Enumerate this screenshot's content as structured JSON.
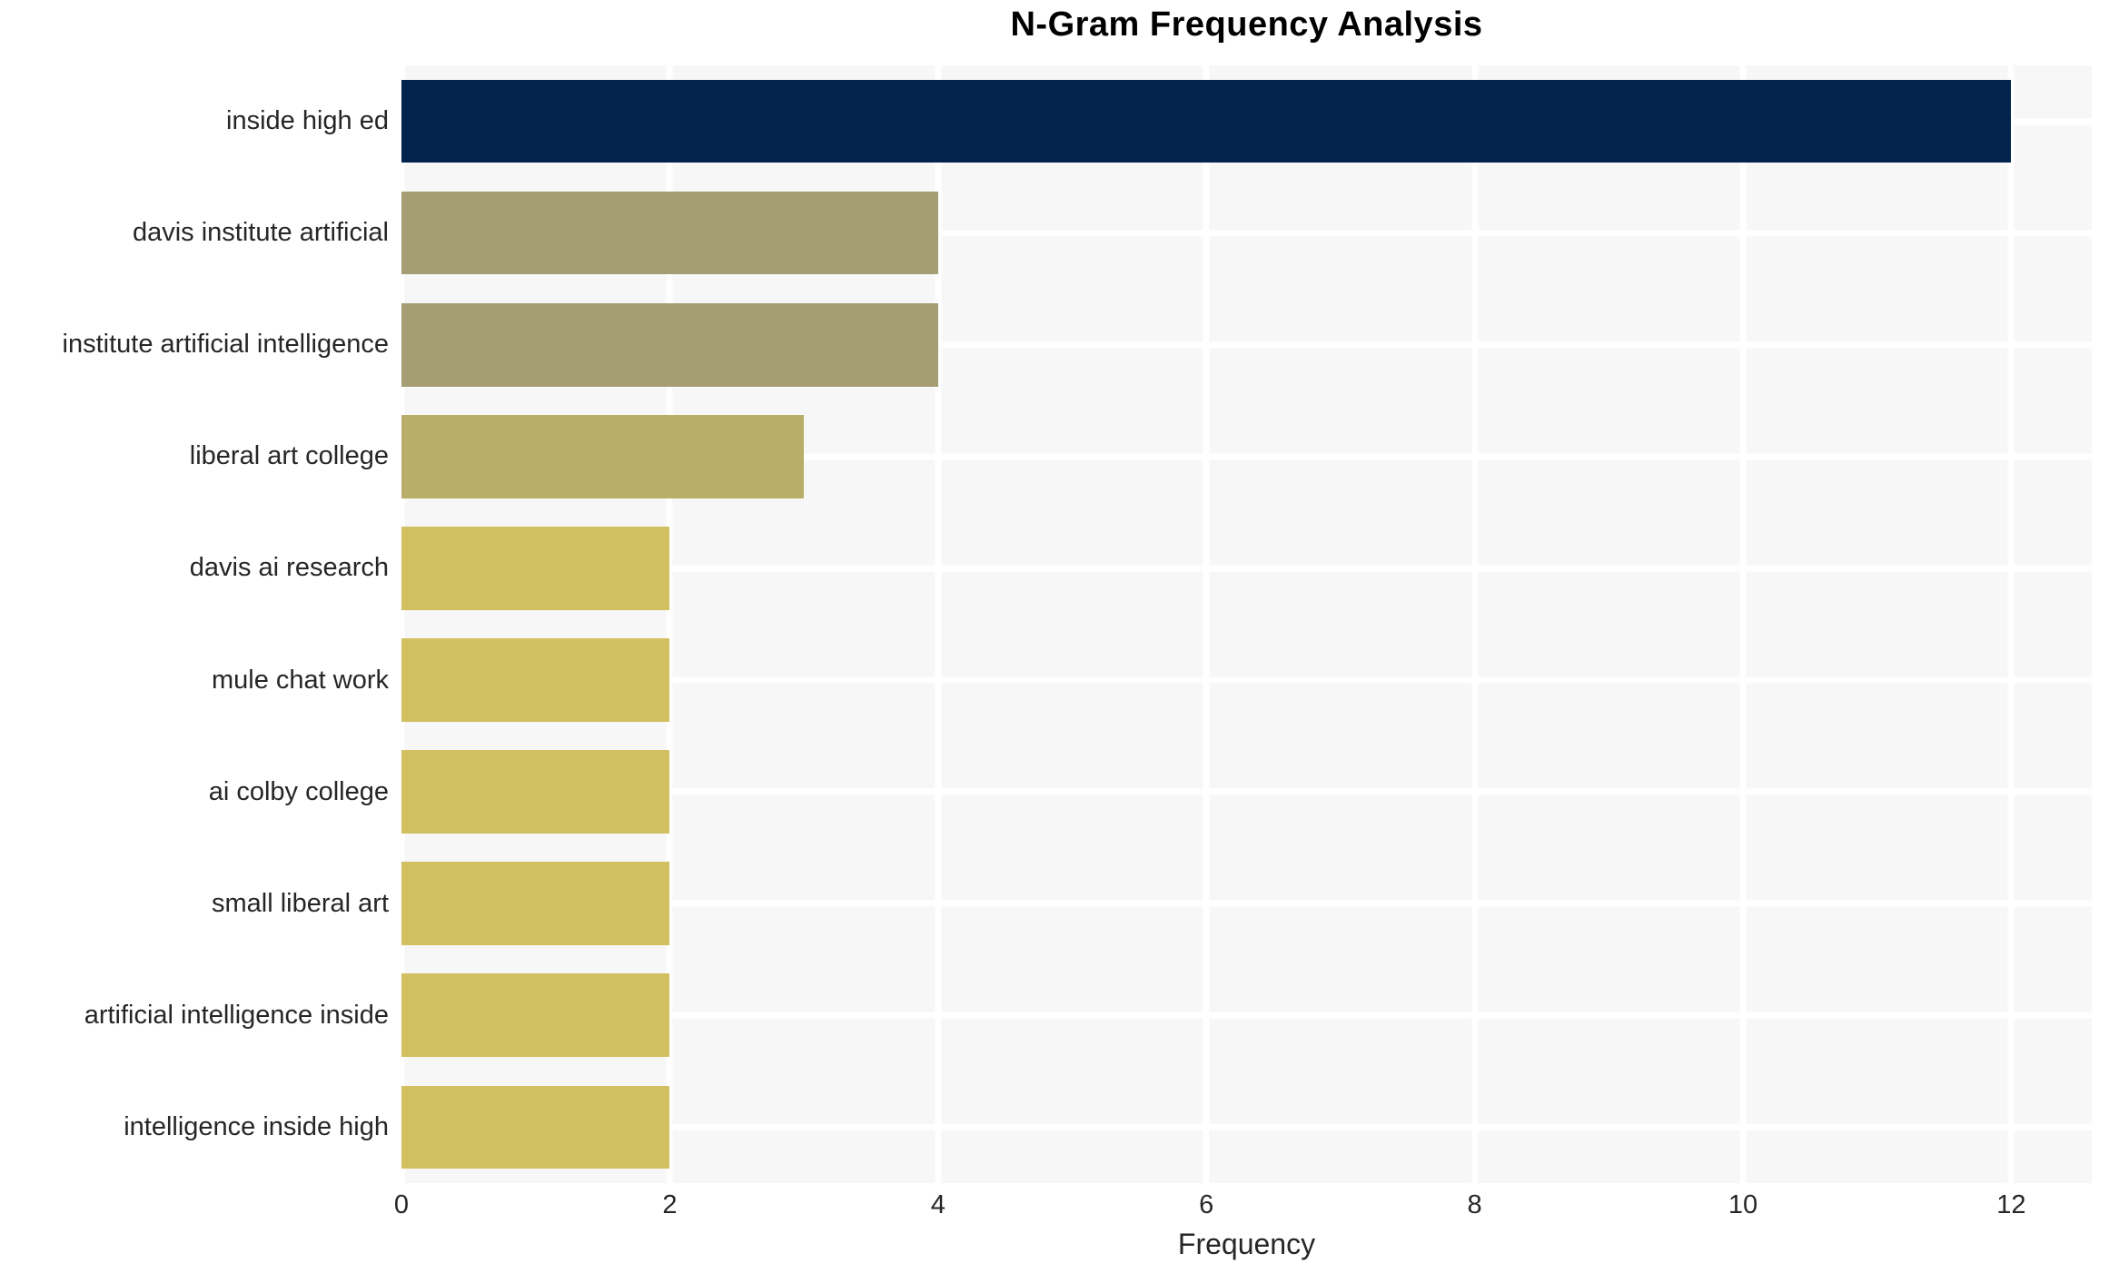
{
  "chart_data": {
    "type": "bar",
    "orientation": "horizontal",
    "title": "N-Gram Frequency Analysis",
    "xlabel": "Frequency",
    "ylabel": "",
    "xlim": [
      0,
      12.6
    ],
    "x_ticks": [
      0,
      2,
      4,
      6,
      8,
      10,
      12
    ],
    "grid": true,
    "categories": [
      "inside high ed",
      "davis institute artificial",
      "institute artificial intelligence",
      "liberal art college",
      "davis ai research",
      "mule chat work",
      "ai colby college",
      "small liberal art",
      "artificial intelligence inside",
      "intelligence inside high"
    ],
    "values": [
      12,
      4,
      4,
      3,
      2,
      2,
      2,
      2,
      2,
      2
    ],
    "bar_colors": [
      "#02234b",
      "#a59d74",
      "#a59d74",
      "#b9ae69",
      "#d2bf5f",
      "#d2bf5f",
      "#d2bf5f",
      "#d2bf5f",
      "#d2bf5f",
      "#d2bf5f"
    ],
    "colors": {
      "plot_background": "#f7f7f7",
      "gridline": "#ffffff",
      "text": "#262626",
      "title_text": "#000000"
    }
  }
}
